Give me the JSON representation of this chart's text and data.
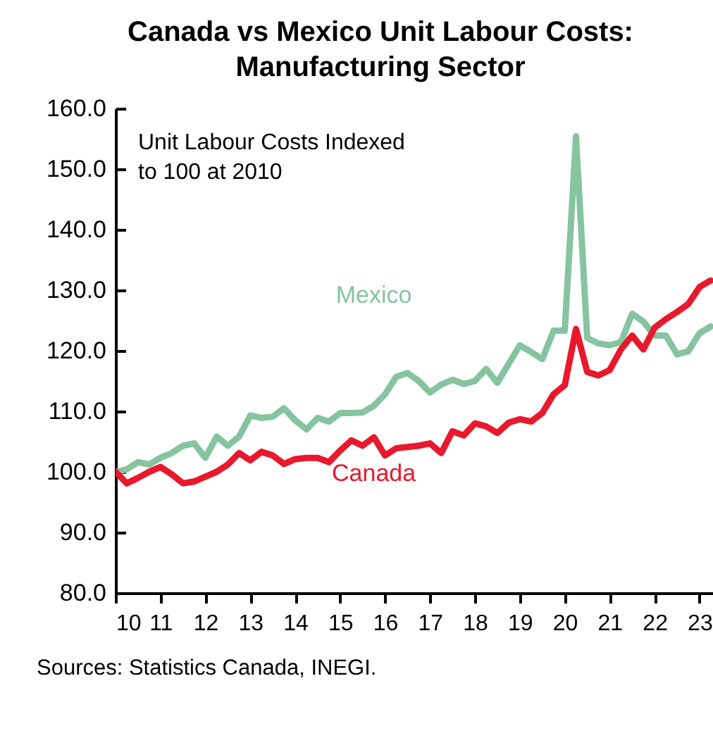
{
  "chart_data": {
    "type": "line",
    "title": "Canada vs Mexico Unit Labour Costs: Manufacturing Sector",
    "x": [
      10,
      10.25,
      10.5,
      10.75,
      11,
      11.25,
      11.5,
      11.75,
      12,
      12.25,
      12.5,
      12.75,
      13,
      13.25,
      13.5,
      13.75,
      14,
      14.25,
      14.5,
      14.75,
      15,
      15.25,
      15.5,
      15.75,
      16,
      16.25,
      16.5,
      16.75,
      17,
      17.25,
      17.5,
      17.75,
      18,
      18.25,
      18.5,
      18.75,
      19,
      19.25,
      19.5,
      19.75,
      20,
      20.25,
      20.5,
      20.75,
      21,
      21.25,
      21.5,
      21.75,
      22,
      22.25,
      22.5,
      22.75,
      23,
      23.25
    ],
    "series": [
      {
        "name": "Mexico",
        "color": "#86c4a0",
        "values": [
          100.0,
          100.4,
          101.6,
          101.2,
          102.3,
          103.1,
          104.3,
          104.7,
          102.3,
          105.8,
          104.3,
          105.8,
          109.3,
          108.9,
          109.1,
          110.5,
          108.5,
          107.0,
          108.9,
          108.3,
          109.7,
          109.7,
          109.8,
          110.9,
          112.8,
          115.7,
          116.3,
          115.0,
          113.1,
          114.4,
          115.2,
          114.5,
          115.0,
          117.0,
          114.7,
          117.8,
          120.9,
          119.8,
          118.6,
          123.3,
          123.3,
          155.4,
          122.1,
          121.2,
          120.9,
          121.4,
          126.1,
          124.8,
          122.5,
          122.5,
          119.4,
          119.9,
          122.9,
          124.0
        ]
      },
      {
        "name": "Canada",
        "color": "#e8192c",
        "values": [
          100.0,
          98.1,
          99.0,
          100.0,
          100.8,
          99.6,
          98.1,
          98.4,
          99.2,
          100.0,
          101.2,
          103.1,
          101.9,
          103.3,
          102.7,
          101.3,
          102.1,
          102.3,
          102.3,
          101.6,
          103.5,
          105.2,
          104.3,
          105.7,
          102.7,
          103.9,
          104.1,
          104.3,
          104.7,
          103.1,
          106.7,
          106.0,
          108.0,
          107.5,
          106.4,
          108.1,
          108.7,
          108.3,
          109.7,
          112.8,
          114.3,
          123.6,
          116.5,
          115.9,
          116.8,
          120.2,
          122.5,
          120.2,
          123.8,
          125.2,
          126.4,
          127.7,
          130.5,
          131.6
        ]
      }
    ],
    "xlim": [
      10,
      23.3
    ],
    "xticks": [
      10,
      11,
      12,
      13,
      14,
      15,
      16,
      17,
      18,
      19,
      20,
      21,
      22,
      23
    ],
    "ylim": [
      80,
      160
    ],
    "yticks": [
      {
        "value": 80,
        "label": "80.0"
      },
      {
        "value": 90,
        "label": "90.0"
      },
      {
        "value": 100,
        "label": "100.0"
      },
      {
        "value": 110,
        "label": "110.0"
      },
      {
        "value": 120,
        "label": "120.0"
      },
      {
        "value": 130,
        "label": "130.0"
      },
      {
        "value": 140,
        "label": "140.0"
      },
      {
        "value": 150,
        "label": "150.0"
      },
      {
        "value": 160,
        "label": "160.0"
      }
    ],
    "annotations": [
      "Unit Labour Costs Indexed to 100 at 2010",
      "Sources: Statistics Canada, INEGI."
    ]
  }
}
